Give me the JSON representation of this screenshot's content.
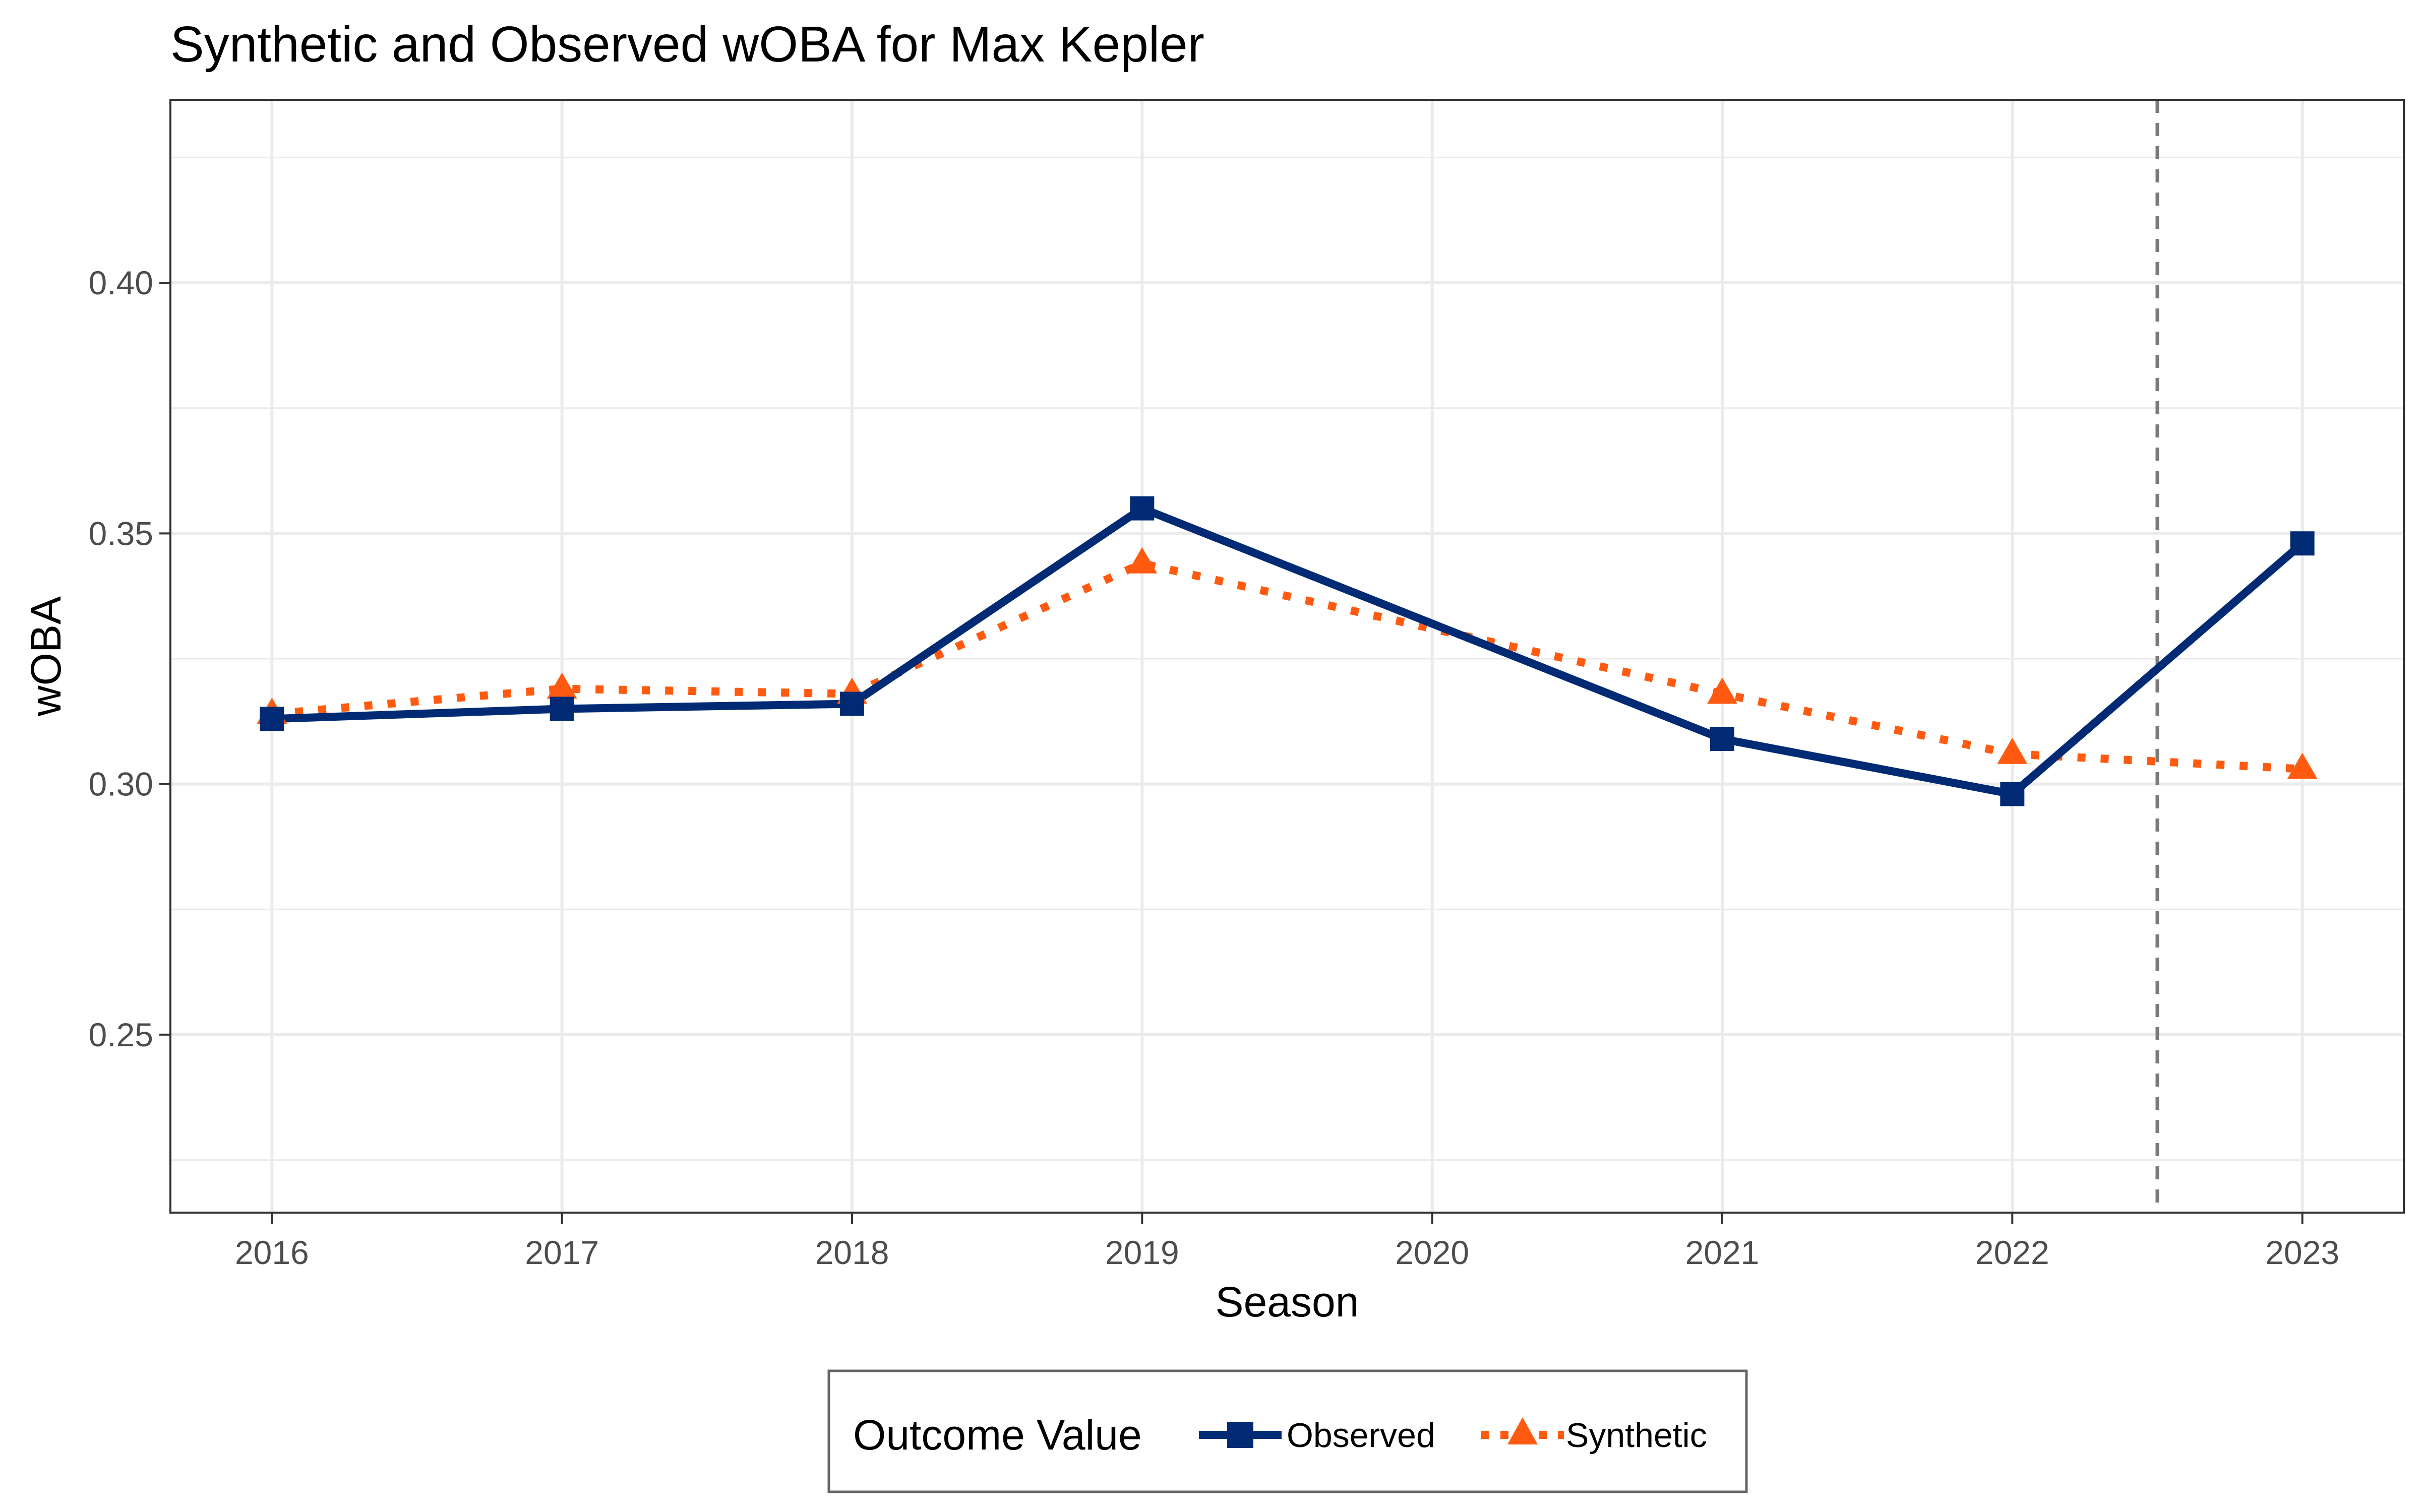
{
  "chart_data": {
    "type": "line",
    "title": "Synthetic and Observed wOBA for Max Kepler",
    "xlabel": "Season",
    "ylabel": "wOBA",
    "x": [
      2016,
      2017,
      2018,
      2019,
      2020,
      2021,
      2022,
      2023
    ],
    "xlim": [
      2015.65,
      2023.35
    ],
    "ylim": [
      0.2145,
      0.4365
    ],
    "yticks": [
      "0.25",
      "0.30",
      "0.35",
      "0.40"
    ],
    "ytick_values": [
      0.25,
      0.3,
      0.35,
      0.4
    ],
    "grid": true,
    "treatment_line_x": 2022.5,
    "series": [
      {
        "name": "Observed",
        "color": "#002B74",
        "marker": "square",
        "line_style": "solid",
        "points": [
          {
            "x": 2016,
            "y": 0.313
          },
          {
            "x": 2017,
            "y": 0.315
          },
          {
            "x": 2018,
            "y": 0.316
          },
          {
            "x": 2019,
            "y": 0.355
          },
          {
            "x": 2021,
            "y": 0.309
          },
          {
            "x": 2022,
            "y": 0.298
          },
          {
            "x": 2023,
            "y": 0.348
          }
        ]
      },
      {
        "name": "Synthetic",
        "color": "#FF5A10",
        "marker": "triangle",
        "line_style": "dotted",
        "points": [
          {
            "x": 2016,
            "y": 0.314
          },
          {
            "x": 2017,
            "y": 0.319
          },
          {
            "x": 2018,
            "y": 0.318
          },
          {
            "x": 2019,
            "y": 0.344
          },
          {
            "x": 2021,
            "y": 0.318
          },
          {
            "x": 2022,
            "y": 0.306
          },
          {
            "x": 2023,
            "y": 0.303
          }
        ]
      }
    ],
    "legend": {
      "title": "Outcome Value",
      "position": "bottom",
      "entries": [
        "Observed",
        "Synthetic"
      ]
    }
  }
}
